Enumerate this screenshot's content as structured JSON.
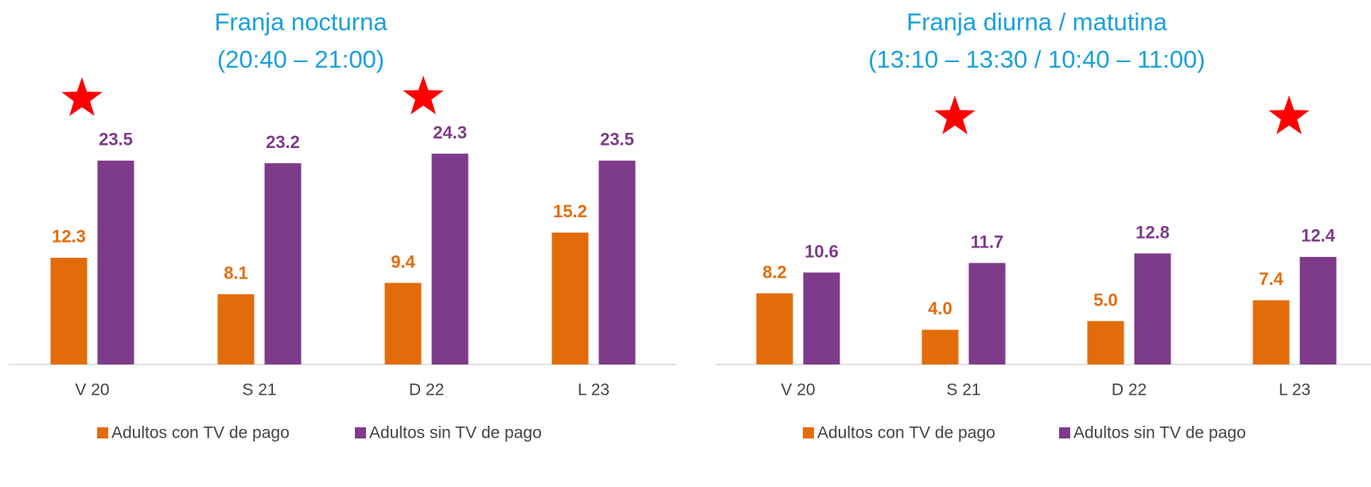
{
  "chart_data": [
    {
      "type": "bar",
      "title": "Franja nocturna",
      "subtitle": "(20:40 – 21:00)",
      "categories": [
        "V 20",
        "S 21",
        "D 22",
        "L 23"
      ],
      "series": [
        {
          "name": "Adultos con TV de pago",
          "color": "#e36c0a",
          "values": [
            12.3,
            8.1,
            9.4,
            15.2
          ]
        },
        {
          "name": "Adultos sin TV de pago",
          "color": "#7e3b8a",
          "values": [
            23.5,
            23.2,
            24.3,
            23.5
          ]
        }
      ]
    },
    {
      "type": "bar",
      "title": "Franja diurna / matutina",
      "subtitle": "(13:10 – 13:30 / 10:40 – 11:00)",
      "categories": [
        "V 20",
        "S 21",
        "D 22",
        "L 23"
      ],
      "series": [
        {
          "name": "Adultos con TV de pago",
          "color": "#e36c0a",
          "values": [
            8.2,
            4.0,
            5.0,
            7.4
          ],
          "value_labels": [
            "8.2",
            "4.0",
            "5.0",
            "7.4"
          ]
        },
        {
          "name": "Adultos sin TV de pago",
          "color": "#7e3b8a",
          "values": [
            10.6,
            11.7,
            12.8,
            12.4
          ]
        }
      ]
    }
  ]
}
